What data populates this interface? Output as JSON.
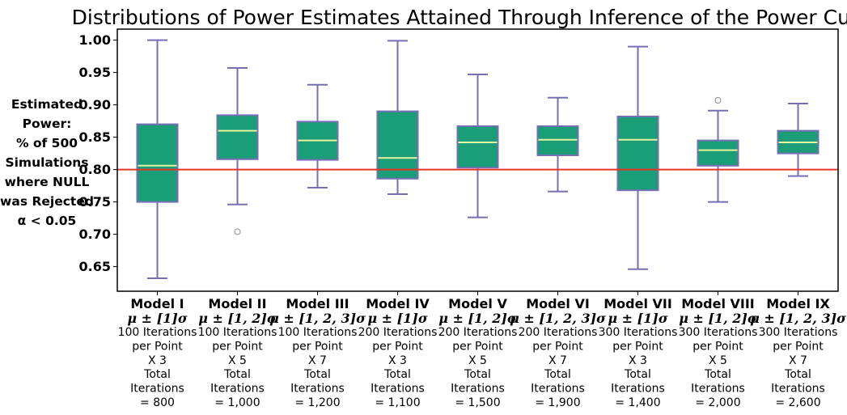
{
  "chart_data": {
    "type": "box",
    "title": "Distributions of Power Estimates Attained Through Inference of the Power Curve",
    "ylabel_lines": [
      "Estimated",
      "Power:",
      "% of 500",
      "Simulations",
      "where NULL",
      "was Rejected",
      "α < 0.05"
    ],
    "ylim": [
      0.612,
      1.017
    ],
    "yticks": [
      "0.65",
      "0.70",
      "0.75",
      "0.80",
      "0.85",
      "0.90",
      "0.95",
      "1.00"
    ],
    "reference_line": 0.8,
    "grid": false,
    "colors": {
      "box_fill": "#1a9e77",
      "box_edge": "#7570b3",
      "whisker": "#7570b3",
      "median": "#e6f5a0",
      "reference": "#e8342a",
      "outlier_edge": "#8c8c8c"
    },
    "categories": [
      {
        "name": "Model I",
        "mu": "μ ± [1]σ",
        "l1": "100 Iterations",
        "l2": "per Point",
        "l3": "X 3",
        "l4": "Total",
        "l5": "Iterations",
        "l6": "= 800"
      },
      {
        "name": "Model II",
        "mu": "μ ± [1, 2]σ",
        "l1": "100 Iterations",
        "l2": "per Point",
        "l3": "X 5",
        "l4": "Total",
        "l5": "Iterations",
        "l6": "= 1,000"
      },
      {
        "name": "Model III",
        "mu": "μ ± [1, 2, 3]σ",
        "l1": "100 Iterations",
        "l2": "per Point",
        "l3": "X 7",
        "l4": "Total",
        "l5": "Iterations",
        "l6": "= 1,200"
      },
      {
        "name": "Model IV",
        "mu": "μ ± [1]σ",
        "l1": "200 Iterations",
        "l2": "per Point",
        "l3": "X 3",
        "l4": "Total",
        "l5": "Iterations",
        "l6": "= 1,100"
      },
      {
        "name": "Model V",
        "mu": "μ ± [1, 2]σ",
        "l1": "200 Iterations",
        "l2": "per Point",
        "l3": "X 5",
        "l4": "Total",
        "l5": "Iterations",
        "l6": "= 1,500"
      },
      {
        "name": "Model VI",
        "mu": "μ ± [1, 2, 3]σ",
        "l1": "200 Iterations",
        "l2": "per Point",
        "l3": "X 7",
        "l4": "Total",
        "l5": "Iterations",
        "l6": "= 1,900"
      },
      {
        "name": "Model VII",
        "mu": "μ ± [1]σ",
        "l1": "300 Iterations",
        "l2": "per Point",
        "l3": "X 3",
        "l4": "Total",
        "l5": "Iterations",
        "l6": "= 1,400"
      },
      {
        "name": "Model VIII",
        "mu": "μ ± [1, 2]σ",
        "l1": "300 Iterations",
        "l2": "per Point",
        "l3": "X 5",
        "l4": "Total",
        "l5": "Iterations",
        "l6": "= 2,000"
      },
      {
        "name": "Model IX",
        "mu": "μ ± [1, 2, 3]σ",
        "l1": "300 Iterations",
        "l2": "per Point",
        "l3": "X 7",
        "l4": "Total",
        "l5": "Iterations",
        "l6": "= 2,600"
      }
    ],
    "boxes": [
      {
        "whislo": 0.632,
        "q1": 0.75,
        "med": 0.806,
        "q3": 0.87,
        "whishi": 1.0,
        "fliers": []
      },
      {
        "whislo": 0.746,
        "q1": 0.816,
        "med": 0.86,
        "q3": 0.884,
        "whishi": 0.957,
        "fliers": [
          0.704
        ]
      },
      {
        "whislo": 0.772,
        "q1": 0.815,
        "med": 0.845,
        "q3": 0.874,
        "whishi": 0.931,
        "fliers": []
      },
      {
        "whislo": 0.762,
        "q1": 0.786,
        "med": 0.818,
        "q3": 0.89,
        "whishi": 0.999,
        "fliers": []
      },
      {
        "whislo": 0.726,
        "q1": 0.803,
        "med": 0.842,
        "q3": 0.867,
        "whishi": 0.947,
        "fliers": []
      },
      {
        "whislo": 0.766,
        "q1": 0.822,
        "med": 0.846,
        "q3": 0.867,
        "whishi": 0.911,
        "fliers": []
      },
      {
        "whislo": 0.646,
        "q1": 0.768,
        "med": 0.846,
        "q3": 0.882,
        "whishi": 0.99,
        "fliers": []
      },
      {
        "whislo": 0.75,
        "q1": 0.806,
        "med": 0.83,
        "q3": 0.845,
        "whishi": 0.891,
        "fliers": [
          0.907
        ]
      },
      {
        "whislo": 0.79,
        "q1": 0.825,
        "med": 0.842,
        "q3": 0.86,
        "whishi": 0.902,
        "fliers": []
      }
    ]
  }
}
